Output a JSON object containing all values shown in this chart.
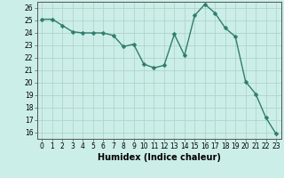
{
  "x": [
    0,
    1,
    2,
    3,
    4,
    5,
    6,
    7,
    8,
    9,
    10,
    11,
    12,
    13,
    14,
    15,
    16,
    17,
    18,
    19,
    20,
    21,
    22,
    23
  ],
  "y": [
    25.1,
    25.1,
    24.6,
    24.1,
    24.0,
    24.0,
    24.0,
    23.8,
    22.9,
    23.1,
    21.5,
    21.2,
    21.4,
    23.9,
    22.2,
    25.4,
    26.3,
    25.6,
    24.4,
    23.7,
    20.1,
    19.1,
    17.2,
    15.9
  ],
  "line_color": "#2e7d6e",
  "marker": "D",
  "marker_size": 2.5,
  "linewidth": 1.0,
  "bg_color": "#cceee8",
  "grid_color": "#b0d4cc",
  "xlabel": "Humidex (Indice chaleur)",
  "ylim_min": 15.5,
  "ylim_max": 26.5,
  "xlim_min": -0.5,
  "xlim_max": 23.5,
  "yticks": [
    16,
    17,
    18,
    19,
    20,
    21,
    22,
    23,
    24,
    25,
    26
  ],
  "xticks": [
    0,
    1,
    2,
    3,
    4,
    5,
    6,
    7,
    8,
    9,
    10,
    11,
    12,
    13,
    14,
    15,
    16,
    17,
    18,
    19,
    20,
    21,
    22,
    23
  ],
  "tick_labelsize": 5.5,
  "xlabel_fontsize": 7.0,
  "axis_color": "#555555"
}
